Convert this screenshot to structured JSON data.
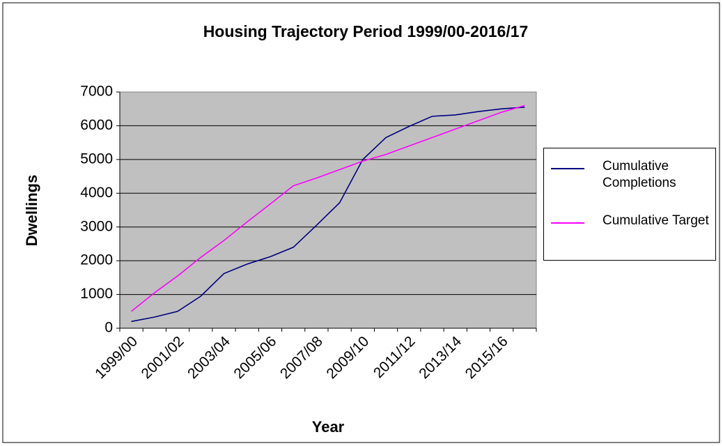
{
  "chart_data": {
    "type": "line",
    "title": "Housing Trajectory Period 1999/00-2016/17",
    "x_label": "Year",
    "y_label": "Dwellings",
    "categories": [
      "1999/00",
      null,
      "2001/02",
      null,
      "2003/04",
      null,
      "2005/06",
      null,
      "2007/08",
      null,
      "2009/10",
      null,
      "2011/12",
      null,
      "2013/14",
      null,
      "2015/16",
      null
    ],
    "series": [
      {
        "name": "Cumulative Completions",
        "color": "#000080",
        "values": [
          200,
          330,
          500,
          950,
          1620,
          1900,
          2120,
          2400,
          3050,
          3720,
          5000,
          5650,
          5980,
          6280,
          6320,
          6420,
          6500,
          6550
        ]
      },
      {
        "name": "Cumulative Target",
        "color": "#ff00ff",
        "values": [
          500,
          1050,
          1550,
          2100,
          2600,
          3150,
          3680,
          4220,
          4450,
          4700,
          4950,
          5150,
          5400,
          5650,
          5900,
          6150,
          6400,
          6600
        ]
      }
    ],
    "ylim": [
      0,
      7000
    ],
    "yticks": [
      0,
      1000,
      2000,
      3000,
      4000,
      5000,
      6000,
      7000
    ],
    "grid": true,
    "legend": "right"
  }
}
